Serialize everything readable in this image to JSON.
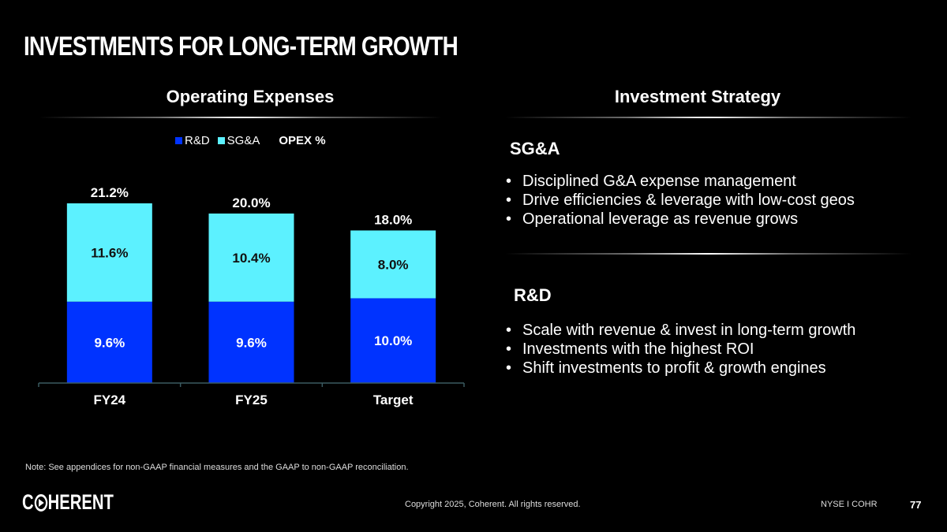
{
  "slide": {
    "title": "INVESTMENTS FOR LONG-TERM GROWTH",
    "left_section_title": "Operating Expenses",
    "right_section_title": "Investment Strategy",
    "note": "Note: See appendices for non-GAAP financial measures and the GAAP to non-GAAP reconciliation.",
    "logo_text_prefix": "C",
    "logo_text_suffix": "HERENT",
    "copyright": "Copyright 2025, Coherent. All rights reserved.",
    "ticker": "NYSE I COHR",
    "page_number": "77"
  },
  "strategy": {
    "sga": {
      "heading": "SG&A",
      "bullets": [
        "Disciplined G&A expense management",
        "Drive efficiencies & leverage with low-cost geos",
        "Operational leverage as revenue grows"
      ]
    },
    "rd": {
      "heading": "R&D",
      "bullets": [
        "Scale with revenue & invest in long-term growth",
        "Investments with the highest ROI",
        "Shift investments to profit & growth engines"
      ]
    },
    "bullet_glyph": "•"
  },
  "chart_data": {
    "type": "bar",
    "stacked": true,
    "title": "Operating Expenses",
    "categories": [
      "FY24",
      "FY25",
      "Target"
    ],
    "series": [
      {
        "name": "R&D",
        "color": "#0033FF",
        "values": [
          9.6,
          9.6,
          10.0
        ],
        "labels": [
          "9.6%",
          "9.6%",
          "10.0%"
        ]
      },
      {
        "name": "SG&A",
        "color": "#5CF1FF",
        "values": [
          11.6,
          10.4,
          8.0
        ],
        "labels": [
          "11.6%",
          "10.4%",
          "8.0%"
        ]
      }
    ],
    "totals": {
      "name": "OPEX %",
      "values": [
        21.2,
        20.0,
        18.0
      ],
      "labels": [
        "21.2%",
        "20.0%",
        "18.0%"
      ]
    },
    "legend": [
      "R&D",
      "SG&A",
      "OPEX %"
    ],
    "legend_position": "top-center",
    "xlabel": "",
    "ylabel": "",
    "ylim": [
      0,
      21.2
    ],
    "grid": false
  }
}
